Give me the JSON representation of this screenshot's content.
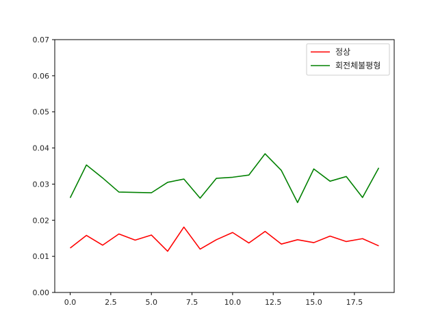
{
  "chart_data": {
    "type": "line",
    "title": "",
    "xlabel": "",
    "ylabel": "",
    "xlim": [
      -0.95,
      19.95
    ],
    "ylim": [
      0.0,
      0.07
    ],
    "x": [
      0,
      1,
      2,
      3,
      4,
      5,
      6,
      7,
      8,
      9,
      10,
      11,
      12,
      13,
      14,
      15,
      16,
      17,
      18,
      19
    ],
    "x_ticks": [
      0,
      2.5,
      5,
      7.5,
      10,
      12.5,
      15,
      17.5
    ],
    "x_tick_labels": [
      "0.0",
      "2.5",
      "5.0",
      "7.5",
      "10.0",
      "12.5",
      "15.0",
      "17.5"
    ],
    "y_ticks": [
      0,
      0.01,
      0.02,
      0.03,
      0.04,
      0.05,
      0.06,
      0.07
    ],
    "y_tick_labels": [
      "0.00",
      "0.01",
      "0.02",
      "0.03",
      "0.04",
      "0.05",
      "0.06",
      "0.07"
    ],
    "grid": false,
    "legend_position": "top-right",
    "series": [
      {
        "name": "정상",
        "color": "#ff0000",
        "values": [
          0.0123,
          0.0158,
          0.0131,
          0.0162,
          0.0145,
          0.0159,
          0.0114,
          0.0181,
          0.012,
          0.0146,
          0.0166,
          0.0137,
          0.0169,
          0.0134,
          0.0146,
          0.0138,
          0.0156,
          0.0141,
          0.0149,
          0.0129
        ]
      },
      {
        "name": "회전체불평형",
        "color": "#008000",
        "values": [
          0.0262,
          0.0353,
          0.0317,
          0.0278,
          0.0277,
          0.0276,
          0.0305,
          0.0314,
          0.0261,
          0.0316,
          0.0319,
          0.0325,
          0.0384,
          0.0338,
          0.0249,
          0.0342,
          0.0308,
          0.0321,
          0.0263,
          0.0345
        ]
      }
    ]
  }
}
